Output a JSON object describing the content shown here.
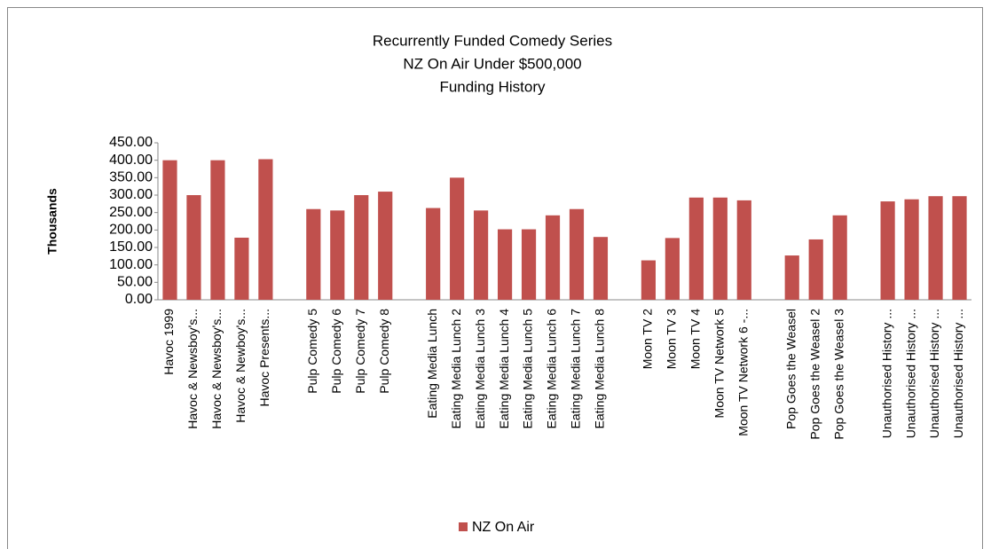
{
  "chart_data": {
    "type": "bar",
    "title_lines": [
      "Recurrently Funded Comedy Series",
      "NZ On Air Under $500,000",
      "Funding History"
    ],
    "y_label": "Thousands",
    "categories": [
      "Havoc 1999",
      "Havoc & Newsboy's...",
      "Havoc & Newsboy's...",
      "Havoc & Newboy's...",
      "Havoc Presents...",
      null,
      "Pulp Comedy 5",
      "Pulp Comedy 6",
      "Pulp Comedy 7",
      "Pulp Comedy 8",
      null,
      "Eating Media Lunch",
      "Eating Media Lunch 2",
      "Eating Media Lunch 3",
      "Eating Media Lunch 4",
      "Eating Media Lunch 5",
      "Eating Media Lunch 6",
      "Eating Media Lunch 7",
      "Eating Media Lunch 8",
      null,
      "Moon TV 2",
      "Moon TV 3",
      "Moon TV 4",
      "Moon TV Network 5",
      "Moon TV Network 6 -...",
      null,
      "Pop Goes the Weasel",
      "Pop Goes the Weasel 2",
      "Pop Goes the Weasel 3",
      null,
      "Unauthorised History ...",
      "Unauthorised History ...",
      "Unauthorised History ...",
      "Unauthorised History ..."
    ],
    "series": [
      {
        "name": "NZ On Air",
        "color": "#c0504d",
        "values": [
          400,
          300,
          400,
          178,
          403,
          null,
          260,
          256,
          300,
          310,
          null,
          263,
          350,
          256,
          202,
          202,
          242,
          260,
          180,
          null,
          113,
          177,
          293,
          293,
          285,
          null,
          127,
          173,
          242,
          null,
          282,
          288,
          297,
          297
        ]
      }
    ],
    "ylim": [
      0,
      450
    ],
    "yticks": [
      {
        "value": 0,
        "label": "0.00"
      },
      {
        "value": 50,
        "label": "50.00"
      },
      {
        "value": 100,
        "label": "100.00"
      },
      {
        "value": 150,
        "label": "150.00"
      },
      {
        "value": 200,
        "label": "200.00"
      },
      {
        "value": 250,
        "label": "250.00"
      },
      {
        "value": 300,
        "label": "300.00"
      },
      {
        "value": 350,
        "label": "350.00"
      },
      {
        "value": 400,
        "label": "400.00"
      },
      {
        "value": 450,
        "label": "450.00"
      }
    ],
    "grid": false,
    "legend": "bottom"
  }
}
